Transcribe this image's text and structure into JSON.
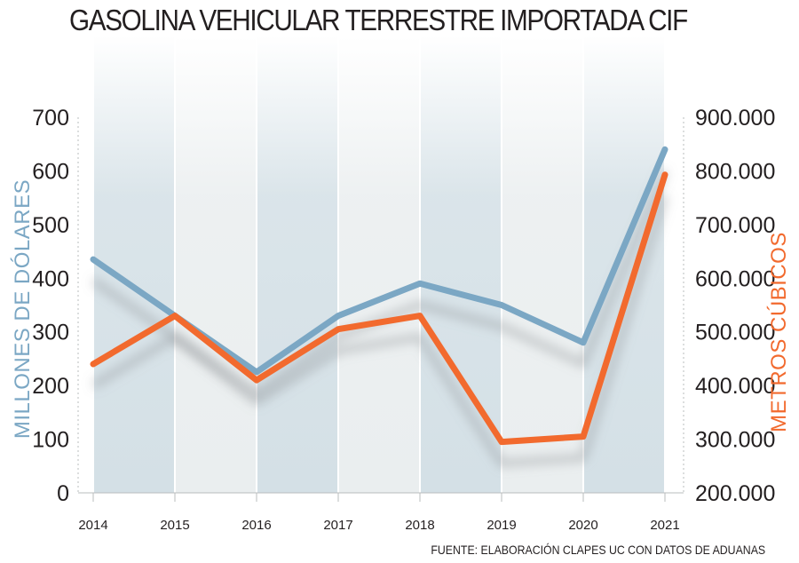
{
  "title": "GASOLINA VEHICULAR TERRESTRE IMPORTADA CIF",
  "source": "FUENTE: ELABORACIÓN CLAPES UC CON DATOS DE ADUANAS",
  "colors": {
    "usd_series": "#7ba7c4",
    "m3_series": "#f26a2e",
    "band_blue": "#d4e0e6",
    "band_grey": "#eaeeef",
    "text": "#231f20"
  },
  "chart_data": {
    "type": "line",
    "title": "GASOLINA VEHICULAR TERRESTRE IMPORTADA CIF",
    "x": [
      "2014",
      "2015",
      "2016",
      "2017",
      "2018",
      "2019",
      "2020",
      "2021"
    ],
    "y_left": {
      "label": "MILLONES DE DÓLARES",
      "lim": [
        0,
        700
      ],
      "ticks": [
        "0",
        "100",
        "200",
        "300",
        "400",
        "500",
        "600",
        "700"
      ]
    },
    "y_right": {
      "label": "METROS CÚBICOS",
      "lim": [
        200000,
        900000
      ],
      "ticks": [
        "200.000",
        "300.000",
        "400.000",
        "500.000",
        "600.000",
        "700.000",
        "800.000",
        "900.000"
      ]
    },
    "series": [
      {
        "axis": "left",
        "color": "#7ba7c4",
        "values": [
          435,
          330,
          225,
          330,
          390,
          350,
          280,
          640
        ]
      },
      {
        "axis": "right",
        "color": "#f26a2e",
        "values": [
          440000,
          530000,
          410000,
          505000,
          530000,
          295000,
          305000,
          793000
        ]
      }
    ],
    "grid": false,
    "background": "alternating vertical bands per year"
  }
}
